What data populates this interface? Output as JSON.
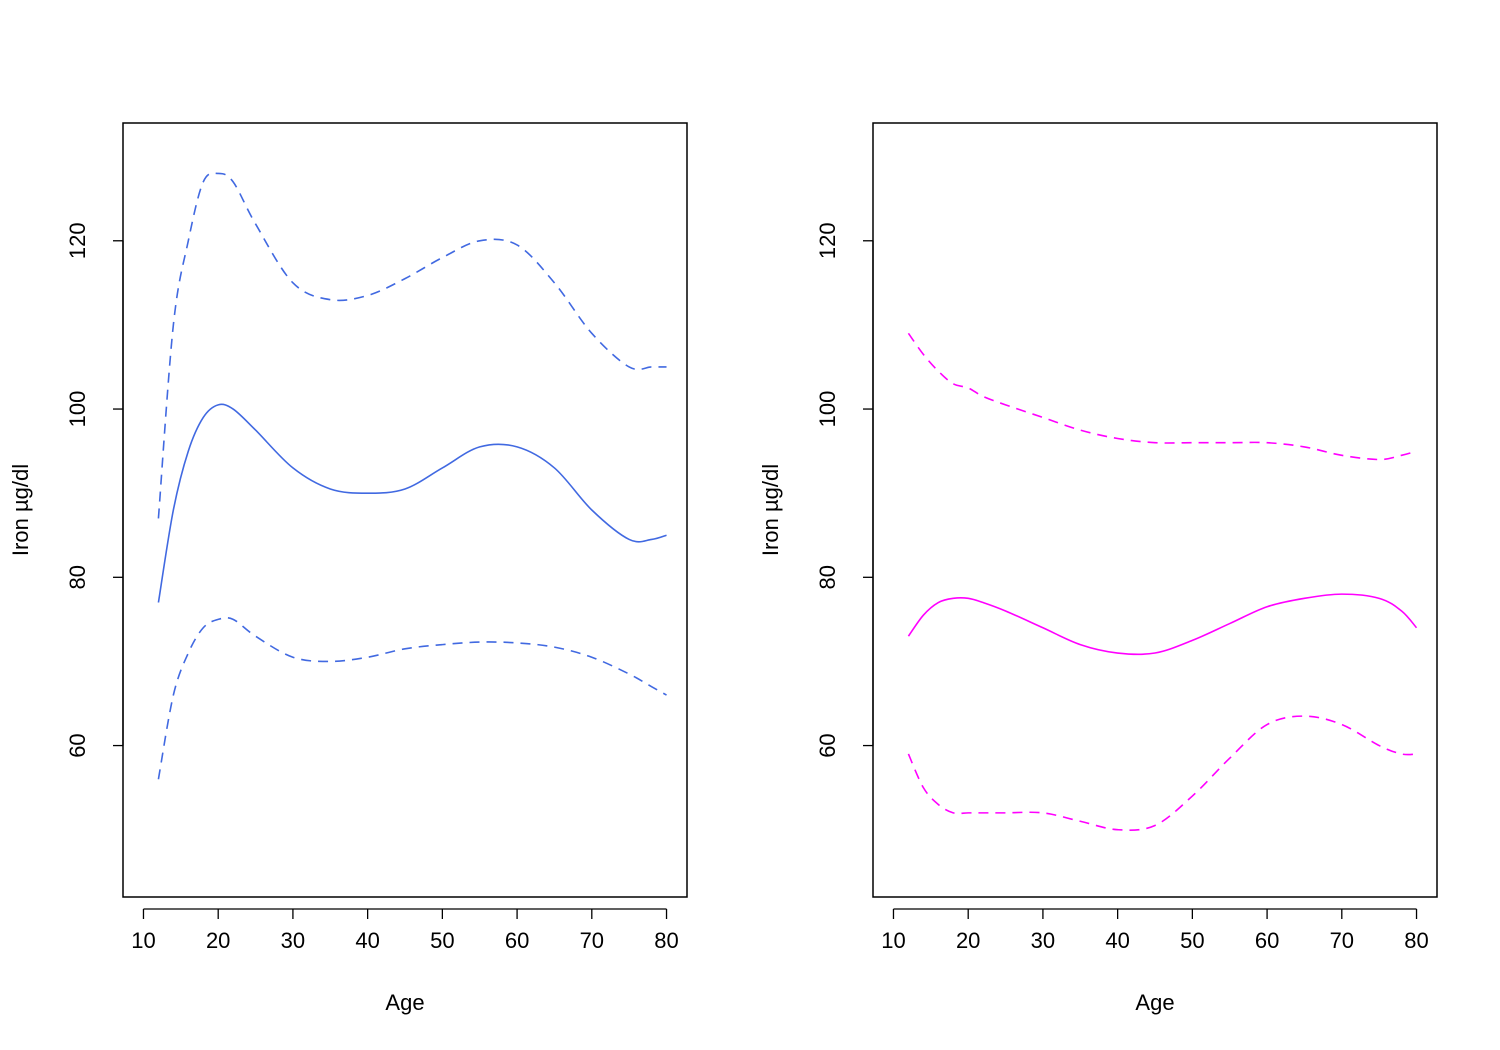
{
  "chart_data": [
    {
      "type": "line",
      "xlabel": "Age",
      "ylabel": "Iron µg/dl",
      "xlim": [
        10,
        80
      ],
      "ylim": [
        42,
        134
      ],
      "xticks": [
        "10",
        "20",
        "30",
        "40",
        "50",
        "60",
        "70",
        "80"
      ],
      "yticks": [
        "60",
        "80",
        "100",
        "120"
      ],
      "grid": false,
      "legend": "none",
      "color": "#4169e1",
      "x": [
        12,
        14,
        16,
        18,
        20,
        22,
        25,
        30,
        35,
        40,
        45,
        50,
        55,
        60,
        65,
        70,
        75,
        78,
        80
      ],
      "series": [
        {
          "style": "dashed",
          "values": [
            87,
            110,
            120,
            127,
            128,
            127,
            122,
            115,
            113,
            113.5,
            115.5,
            118,
            120,
            119.5,
            115,
            109,
            105,
            105,
            105
          ]
        },
        {
          "style": "solid",
          "values": [
            77,
            88,
            95,
            99,
            100.5,
            100,
            97.5,
            93,
            90.5,
            90,
            90.5,
            93,
            95.5,
            95.5,
            93,
            88,
            84.5,
            84.5,
            85
          ]
        },
        {
          "style": "dashed",
          "values": [
            56,
            66,
            71,
            74,
            75,
            75,
            73,
            70.5,
            70,
            70.5,
            71.5,
            72,
            72.3,
            72.2,
            71.7,
            70.5,
            68.5,
            67,
            66
          ]
        }
      ]
    },
    {
      "type": "line",
      "xlabel": "Age",
      "ylabel": "Iron µg/dl",
      "xlim": [
        10,
        80
      ],
      "ylim": [
        42,
        134
      ],
      "xticks": [
        "10",
        "20",
        "30",
        "40",
        "50",
        "60",
        "70",
        "80"
      ],
      "yticks": [
        "60",
        "80",
        "100",
        "120"
      ],
      "grid": false,
      "legend": "none",
      "color": "#ff00ff",
      "x": [
        12,
        14,
        16,
        18,
        20,
        22,
        25,
        30,
        35,
        40,
        45,
        50,
        55,
        60,
        65,
        70,
        75,
        78,
        80
      ],
      "series": [
        {
          "style": "dashed",
          "values": [
            109,
            106.5,
            104.5,
            103,
            102.5,
            101.5,
            100.5,
            99,
            97.5,
            96.5,
            96,
            96,
            96,
            96,
            95.5,
            94.5,
            94,
            94.5,
            95
          ]
        },
        {
          "style": "solid",
          "values": [
            73,
            75.5,
            77,
            77.5,
            77.5,
            77,
            76,
            74,
            72,
            71,
            71,
            72.5,
            74.5,
            76.5,
            77.5,
            78,
            77.5,
            76,
            74
          ]
        },
        {
          "style": "dashed",
          "values": [
            59,
            55,
            53,
            52,
            52,
            52,
            52,
            52,
            51,
            50,
            50.5,
            54,
            58.5,
            62.5,
            63.5,
            62.5,
            60,
            59,
            59
          ]
        }
      ]
    }
  ]
}
